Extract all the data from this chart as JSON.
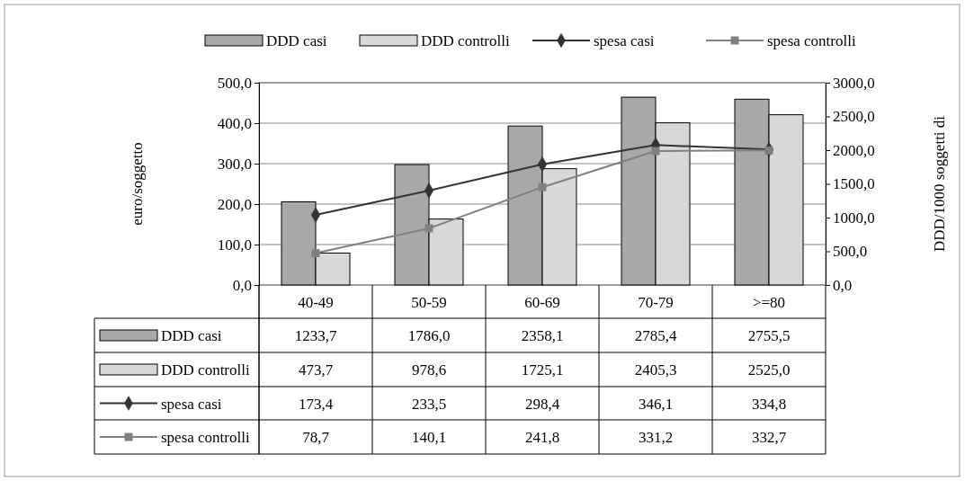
{
  "chart_data": {
    "type": "bar",
    "ylabel": "euro/soggetto",
    "y2label": "DDD/1000 soggetti di",
    "categories": [
      "40-49",
      "50-59",
      "60-69",
      "70-79",
      ">=80"
    ],
    "series": [
      {
        "name": "DDD casi",
        "axis": "y2",
        "color": "#a8a8a8",
        "values": [
          1233.7,
          1786.0,
          2358.1,
          2785.4,
          2755.5
        ],
        "value_labels": [
          "1233,7",
          "1786,0",
          "2358,1",
          "2785,4",
          "2755,5"
        ]
      },
      {
        "name": "DDD controlli",
        "axis": "y2",
        "color": "#d8d8d8",
        "values": [
          473.7,
          978.6,
          1725.1,
          2405.3,
          2525.0
        ],
        "value_labels": [
          "473,7",
          "978,6",
          "1725,1",
          "2405,3",
          "2525,0"
        ]
      },
      {
        "name": "spesa casi",
        "type": "line",
        "color": "#333333",
        "marker": "diamond",
        "values": [
          173.4,
          233.5,
          298.4,
          346.1,
          334.8
        ],
        "value_labels": [
          "173,4",
          "233,5",
          "298,4",
          "346,1",
          "334,8"
        ]
      },
      {
        "name": "spesa controlli",
        "type": "line",
        "color": "#808080",
        "marker": "square",
        "values": [
          78.7,
          140.1,
          241.8,
          331.2,
          332.7
        ],
        "value_labels": [
          "78,7",
          "140,1",
          "241,8",
          "331,2",
          "332,7"
        ]
      }
    ],
    "ylim": [
      0,
      500
    ],
    "yticks": [
      {
        "value": 0,
        "label": "0,0"
      },
      {
        "value": 100,
        "label": "100,0"
      },
      {
        "value": 200,
        "label": "200,0"
      },
      {
        "value": 300,
        "label": "300,0"
      },
      {
        "value": 400,
        "label": "400,0"
      },
      {
        "value": 500,
        "label": "500,0"
      }
    ],
    "y2lim": [
      0,
      3000
    ],
    "y2ticks": [
      {
        "value": 0,
        "label": "0,0"
      },
      {
        "value": 500,
        "label": "500,0"
      },
      {
        "value": 1000,
        "label": "1000,0"
      },
      {
        "value": 1500,
        "label": "1500,0"
      },
      {
        "value": 2000,
        "label": "2000,0"
      },
      {
        "value": 2500,
        "label": "2500,0"
      },
      {
        "value": 3000,
        "label": "3000,0"
      }
    ],
    "grid": "y",
    "legend": "top right"
  }
}
